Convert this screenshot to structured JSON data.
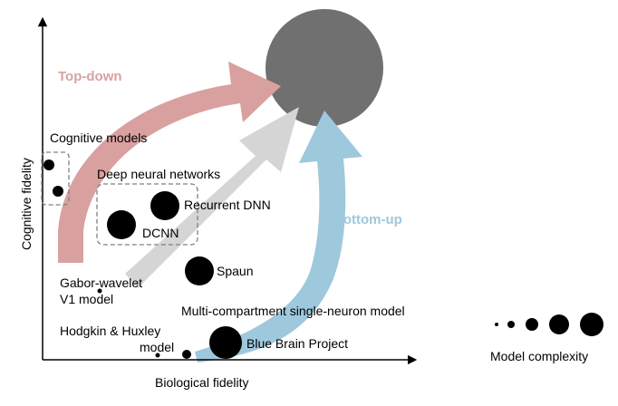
{
  "axes": {
    "x_label": "Biological fidelity",
    "y_label": "Cognitive fidelity"
  },
  "arrows": {
    "top_down": {
      "label": "Top-down",
      "color": "#d9a0a0"
    },
    "middle": {
      "color": "#d5d5d5"
    },
    "bottom_up": {
      "label": "Bottom-up",
      "color": "#9ec8dc"
    }
  },
  "target_circle": {
    "color": "#707070"
  },
  "groups": {
    "cognitive_models": "Cognitive models",
    "deep_neural_networks": "Deep neural networks"
  },
  "models": {
    "recurrent_dnn": "Recurrent DNN",
    "dcnn": "DCNN",
    "spaun": "Spaun",
    "gabor_line1": "Gabor-wavelet",
    "gabor_line2": "V1 model",
    "multi_compartment": "Multi-compartment single-neuron model",
    "hodgkin_line1": "Hodgkin & Huxley",
    "hodgkin_line2": "model",
    "blue_brain": "Blue Brain Project"
  },
  "legend": {
    "label": "Model complexity"
  }
}
